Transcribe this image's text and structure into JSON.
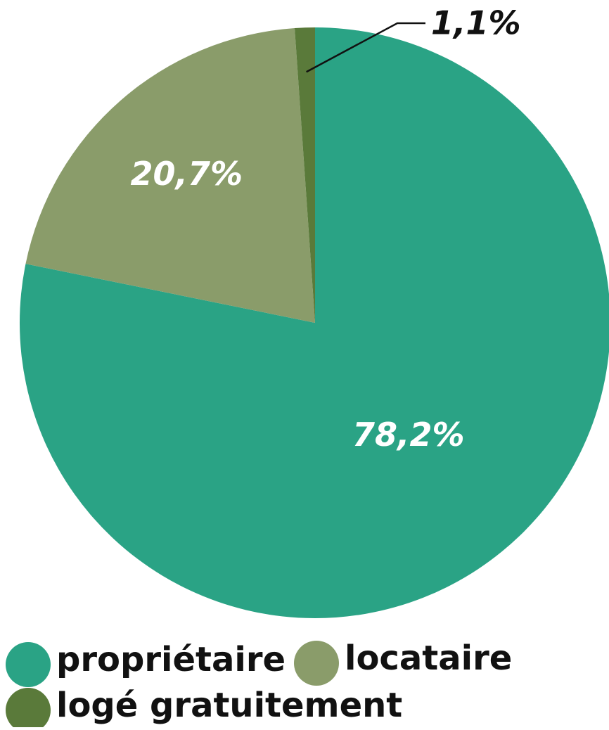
{
  "chart_data": {
    "type": "pie",
    "categories": [
      "propriétaire",
      "locataire",
      "logé gratuitement"
    ],
    "values": [
      78.2,
      20.7,
      1.1
    ],
    "value_labels": [
      "78,2%",
      "20,7%",
      "1,1%"
    ],
    "colors": [
      "#2aa385",
      "#8a9c6a",
      "#5a7a3a"
    ]
  }
}
